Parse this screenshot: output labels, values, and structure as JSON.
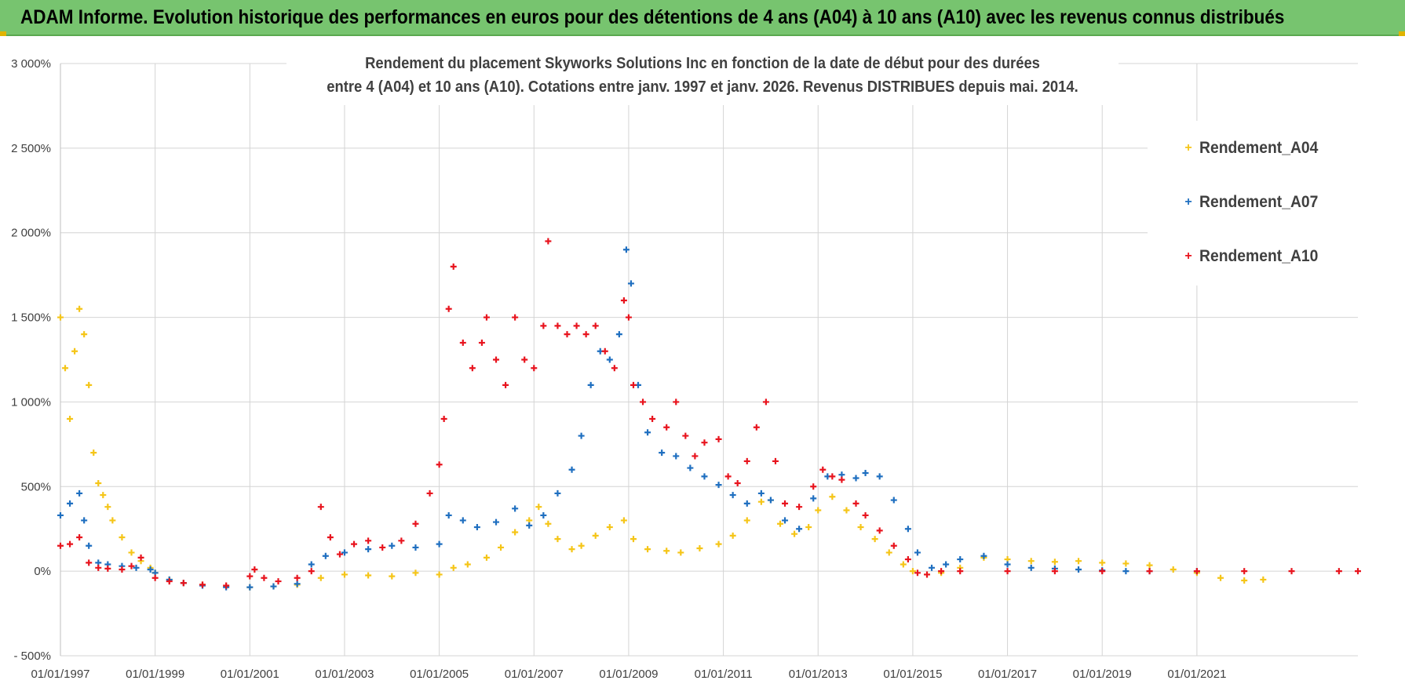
{
  "banner": {
    "title": "ADAM Informe. Evolution historique des performances en euros pour des détentions de 4 ans (A04) à 10 ans (A10) avec les revenus connus distribués"
  },
  "colors": {
    "banner_bg": "#77c46f",
    "A04": "#f5c518",
    "A07": "#1f6fc0",
    "A10": "#e8141e",
    "grid": "#d4d4d4",
    "text": "#404040"
  },
  "chart_data": {
    "type": "scatter",
    "title_line1": "Rendement du placement Skyworks Solutions Inc en fonction de la date de début pour des durées",
    "title_line2": "entre 4 (A04) et 10 ans (A10). Cotations entre janv. 1997 et janv. 2026. Revenus DISTRIBUES depuis mai. 2014.",
    "xlabel": "",
    "ylabel": "",
    "xlim": [
      1997.0,
      2024.4
    ],
    "ylim": [
      -500,
      3000
    ],
    "ytick_values": [
      -500,
      0,
      500,
      1000,
      1500,
      2000,
      2500,
      3000
    ],
    "ytick_labels": [
      "- 500%",
      "0%",
      "500%",
      "1 000%",
      "1 500%",
      "2 000%",
      "2 500%",
      "3 000%"
    ],
    "xtick_values": [
      1997,
      1999,
      2001,
      2003,
      2005,
      2007,
      2009,
      2011,
      2013,
      2015,
      2017,
      2019,
      2021
    ],
    "xtick_labels": [
      "01/01/1997",
      "01/01/1999",
      "01/01/2001",
      "01/01/2003",
      "01/01/2005",
      "01/01/2007",
      "01/01/2009",
      "01/01/2011",
      "01/01/2013",
      "01/01/2015",
      "01/01/2017",
      "01/01/2019",
      "01/01/2021"
    ],
    "legend_position": "top-right",
    "series": [
      {
        "name": "Rendement_A04",
        "color": "#f5c518",
        "points": [
          [
            1997.0,
            1500
          ],
          [
            1997.1,
            1200
          ],
          [
            1997.2,
            900
          ],
          [
            1997.3,
            1300
          ],
          [
            1997.4,
            1550
          ],
          [
            1997.5,
            1400
          ],
          [
            1997.6,
            1100
          ],
          [
            1997.7,
            700
          ],
          [
            1997.8,
            520
          ],
          [
            1997.9,
            450
          ],
          [
            1998.0,
            380
          ],
          [
            1998.1,
            300
          ],
          [
            1998.3,
            200
          ],
          [
            1998.5,
            110
          ],
          [
            1998.7,
            60
          ],
          [
            1998.9,
            20
          ],
          [
            1999.0,
            -10
          ],
          [
            1999.3,
            -50
          ],
          [
            1999.6,
            -70
          ],
          [
            2000.0,
            -80
          ],
          [
            2000.5,
            -90
          ],
          [
            2001.0,
            -95
          ],
          [
            2001.5,
            -90
          ],
          [
            2002.0,
            -80
          ],
          [
            2002.5,
            -40
          ],
          [
            2003.0,
            -20
          ],
          [
            2003.5,
            -25
          ],
          [
            2004.0,
            -30
          ],
          [
            2004.5,
            -10
          ],
          [
            2005.0,
            -20
          ],
          [
            2005.3,
            20
          ],
          [
            2005.6,
            40
          ],
          [
            2006.0,
            80
          ],
          [
            2006.3,
            140
          ],
          [
            2006.6,
            230
          ],
          [
            2006.9,
            300
          ],
          [
            2007.1,
            380
          ],
          [
            2007.3,
            280
          ],
          [
            2007.5,
            190
          ],
          [
            2007.8,
            130
          ],
          [
            2008.0,
            150
          ],
          [
            2008.3,
            210
          ],
          [
            2008.6,
            260
          ],
          [
            2008.9,
            300
          ],
          [
            2009.1,
            190
          ],
          [
            2009.4,
            130
          ],
          [
            2009.8,
            120
          ],
          [
            2010.1,
            110
          ],
          [
            2010.5,
            135
          ],
          [
            2010.9,
            160
          ],
          [
            2011.2,
            210
          ],
          [
            2011.5,
            300
          ],
          [
            2011.8,
            410
          ],
          [
            2012.0,
            420
          ],
          [
            2012.2,
            280
          ],
          [
            2012.5,
            220
          ],
          [
            2012.8,
            260
          ],
          [
            2013.0,
            360
          ],
          [
            2013.3,
            440
          ],
          [
            2013.6,
            360
          ],
          [
            2013.9,
            260
          ],
          [
            2014.2,
            190
          ],
          [
            2014.5,
            110
          ],
          [
            2014.8,
            40
          ],
          [
            2015.0,
            0
          ],
          [
            2015.3,
            -20
          ],
          [
            2015.6,
            -10
          ],
          [
            2016.0,
            20
          ],
          [
            2016.5,
            80
          ],
          [
            2017.0,
            70
          ],
          [
            2017.5,
            60
          ],
          [
            2018.0,
            55
          ],
          [
            2018.5,
            60
          ],
          [
            2019.0,
            50
          ],
          [
            2019.5,
            45
          ],
          [
            2020.0,
            35
          ],
          [
            2020.5,
            10
          ],
          [
            2021.0,
            -10
          ],
          [
            2021.5,
            -40
          ],
          [
            2022.0,
            -55
          ],
          [
            2022.4,
            -50
          ]
        ]
      },
      {
        "name": "Rendement_A07",
        "color": "#1f6fc0",
        "points": [
          [
            1997.0,
            330
          ],
          [
            1997.2,
            400
          ],
          [
            1997.4,
            460
          ],
          [
            1997.5,
            300
          ],
          [
            1997.6,
            150
          ],
          [
            1997.8,
            50
          ],
          [
            1998.0,
            40
          ],
          [
            1998.3,
            30
          ],
          [
            1998.6,
            20
          ],
          [
            1998.9,
            10
          ],
          [
            1999.0,
            -10
          ],
          [
            1999.3,
            -50
          ],
          [
            1999.6,
            -70
          ],
          [
            2000.0,
            -85
          ],
          [
            2000.5,
            -95
          ],
          [
            2001.0,
            -95
          ],
          [
            2001.5,
            -90
          ],
          [
            2002.0,
            -75
          ],
          [
            2002.3,
            40
          ],
          [
            2002.6,
            90
          ],
          [
            2003.0,
            110
          ],
          [
            2003.5,
            130
          ],
          [
            2004.0,
            150
          ],
          [
            2004.5,
            140
          ],
          [
            2005.0,
            160
          ],
          [
            2005.2,
            330
          ],
          [
            2005.5,
            300
          ],
          [
            2005.8,
            260
          ],
          [
            2006.2,
            290
          ],
          [
            2006.6,
            370
          ],
          [
            2006.9,
            270
          ],
          [
            2007.2,
            330
          ],
          [
            2007.5,
            460
          ],
          [
            2007.8,
            600
          ],
          [
            2008.0,
            800
          ],
          [
            2008.2,
            1100
          ],
          [
            2008.4,
            1300
          ],
          [
            2008.6,
            1250
          ],
          [
            2008.8,
            1400
          ],
          [
            2008.95,
            1900
          ],
          [
            2009.05,
            1700
          ],
          [
            2009.2,
            1100
          ],
          [
            2009.4,
            820
          ],
          [
            2009.7,
            700
          ],
          [
            2010.0,
            680
          ],
          [
            2010.3,
            610
          ],
          [
            2010.6,
            560
          ],
          [
            2010.9,
            510
          ],
          [
            2011.2,
            450
          ],
          [
            2011.5,
            400
          ],
          [
            2011.8,
            460
          ],
          [
            2012.0,
            420
          ],
          [
            2012.3,
            300
          ],
          [
            2012.6,
            250
          ],
          [
            2012.9,
            430
          ],
          [
            2013.2,
            560
          ],
          [
            2013.5,
            570
          ],
          [
            2013.8,
            550
          ],
          [
            2014.0,
            580
          ],
          [
            2014.3,
            560
          ],
          [
            2014.6,
            420
          ],
          [
            2014.9,
            250
          ],
          [
            2015.1,
            110
          ],
          [
            2015.4,
            20
          ],
          [
            2015.7,
            40
          ],
          [
            2016.0,
            70
          ],
          [
            2016.5,
            90
          ],
          [
            2017.0,
            40
          ],
          [
            2017.5,
            20
          ],
          [
            2018.0,
            15
          ],
          [
            2018.5,
            10
          ],
          [
            2019.0,
            5
          ],
          [
            2019.5,
            0
          ],
          [
            2020.0,
            0
          ],
          [
            2021.0,
            0
          ]
        ]
      },
      {
        "name": "Rendement_A10",
        "color": "#e8141e",
        "points": [
          [
            1997.0,
            150
          ],
          [
            1997.2,
            160
          ],
          [
            1997.4,
            200
          ],
          [
            1997.6,
            50
          ],
          [
            1997.8,
            20
          ],
          [
            1998.0,
            15
          ],
          [
            1998.3,
            10
          ],
          [
            1998.5,
            30
          ],
          [
            1998.7,
            80
          ],
          [
            1999.0,
            -40
          ],
          [
            1999.3,
            -60
          ],
          [
            1999.6,
            -70
          ],
          [
            2000.0,
            -80
          ],
          [
            2000.5,
            -85
          ],
          [
            2001.0,
            -30
          ],
          [
            2001.1,
            10
          ],
          [
            2001.3,
            -40
          ],
          [
            2001.6,
            -60
          ],
          [
            2002.0,
            -40
          ],
          [
            2002.3,
            0
          ],
          [
            2002.5,
            380
          ],
          [
            2002.7,
            200
          ],
          [
            2002.9,
            100
          ],
          [
            2003.2,
            160
          ],
          [
            2003.5,
            180
          ],
          [
            2003.8,
            140
          ],
          [
            2004.2,
            180
          ],
          [
            2004.5,
            280
          ],
          [
            2004.8,
            460
          ],
          [
            2005.0,
            630
          ],
          [
            2005.1,
            900
          ],
          [
            2005.2,
            1550
          ],
          [
            2005.3,
            1800
          ],
          [
            2005.5,
            1350
          ],
          [
            2005.7,
            1200
          ],
          [
            2005.9,
            1350
          ],
          [
            2006.0,
            1500
          ],
          [
            2006.2,
            1250
          ],
          [
            2006.4,
            1100
          ],
          [
            2006.6,
            1500
          ],
          [
            2006.8,
            1250
          ],
          [
            2007.0,
            1200
          ],
          [
            2007.2,
            1450
          ],
          [
            2007.3,
            1950
          ],
          [
            2007.5,
            1450
          ],
          [
            2007.7,
            1400
          ],
          [
            2007.9,
            1450
          ],
          [
            2008.1,
            1400
          ],
          [
            2008.3,
            1450
          ],
          [
            2008.5,
            1300
          ],
          [
            2008.7,
            1200
          ],
          [
            2008.9,
            1600
          ],
          [
            2009.0,
            1500
          ],
          [
            2009.1,
            1100
          ],
          [
            2009.3,
            1000
          ],
          [
            2009.5,
            900
          ],
          [
            2009.8,
            850
          ],
          [
            2010.0,
            1000
          ],
          [
            2010.2,
            800
          ],
          [
            2010.4,
            680
          ],
          [
            2010.6,
            760
          ],
          [
            2010.9,
            780
          ],
          [
            2011.1,
            560
          ],
          [
            2011.3,
            520
          ],
          [
            2011.5,
            650
          ],
          [
            2011.7,
            850
          ],
          [
            2011.9,
            1000
          ],
          [
            2012.1,
            650
          ],
          [
            2012.3,
            400
          ],
          [
            2012.6,
            380
          ],
          [
            2012.9,
            500
          ],
          [
            2013.1,
            600
          ],
          [
            2013.3,
            560
          ],
          [
            2013.5,
            540
          ],
          [
            2013.8,
            400
          ],
          [
            2014.0,
            330
          ],
          [
            2014.3,
            240
          ],
          [
            2014.6,
            150
          ],
          [
            2014.9,
            70
          ],
          [
            2015.1,
            -10
          ],
          [
            2015.3,
            -20
          ],
          [
            2015.6,
            0
          ],
          [
            2016.0,
            0
          ],
          [
            2017.0,
            0
          ],
          [
            2018.0,
            0
          ],
          [
            2019.0,
            0
          ],
          [
            2020.0,
            0
          ],
          [
            2021.0,
            0
          ],
          [
            2022.0,
            0
          ],
          [
            2023.0,
            0
          ],
          [
            2024.0,
            0
          ],
          [
            2024.4,
            0
          ]
        ]
      }
    ]
  }
}
